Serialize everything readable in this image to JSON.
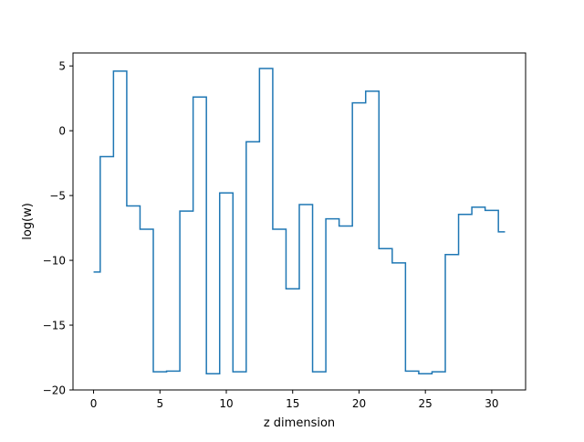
{
  "chart_data": {
    "type": "line",
    "step": "mid",
    "title": "",
    "xlabel": "z dimension",
    "ylabel": "log(w)",
    "xlim": [
      -1.55,
      32.55
    ],
    "ylim": [
      -20,
      6
    ],
    "x_ticks": [
      0,
      5,
      10,
      15,
      20,
      25,
      30
    ],
    "y_ticks": [
      5,
      0,
      -5,
      -10,
      -15,
      -20
    ],
    "x_tick_labels": [
      "0",
      "5",
      "10",
      "15",
      "20",
      "25",
      "30"
    ],
    "y_tick_labels": [
      "5",
      "0",
      "−5",
      "−10",
      "−15",
      "−20"
    ],
    "grid": false,
    "color": "#1f77b4",
    "series": [
      {
        "x": [
          0,
          1,
          2,
          3,
          4,
          5,
          6,
          7,
          8,
          9,
          10,
          11,
          12,
          13,
          14,
          15,
          16,
          17,
          18,
          19,
          20,
          21,
          22,
          23,
          24,
          25,
          26,
          27,
          28,
          29,
          30,
          31
        ],
        "y": [
          -10.9,
          -2.0,
          4.6,
          -5.8,
          -7.6,
          -18.6,
          -18.55,
          -6.2,
          2.6,
          -18.75,
          -4.8,
          -18.6,
          -0.85,
          4.8,
          -7.6,
          -12.2,
          -5.7,
          -18.6,
          -6.8,
          -7.35,
          2.15,
          3.05,
          -9.1,
          -10.2,
          -18.55,
          -18.75,
          -18.6,
          -9.55,
          -6.45,
          -5.9,
          -6.15,
          -7.8
        ]
      }
    ]
  }
}
